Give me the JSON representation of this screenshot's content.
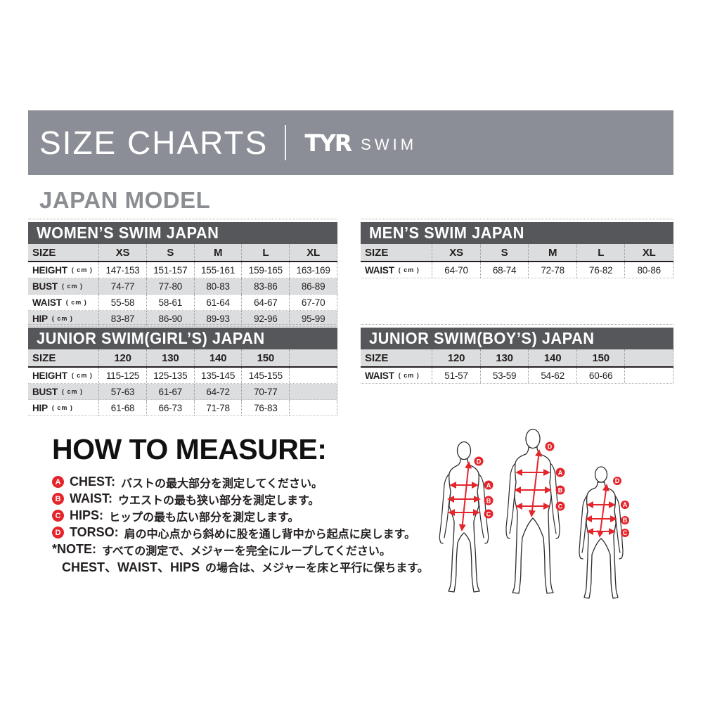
{
  "header": {
    "title": "SIZE CHARTS",
    "brand": "TYR",
    "brand_suffix": "SWIM"
  },
  "section_title": "JAPAN MODEL",
  "tables": [
    {
      "id": "womens",
      "title": "WOMEN’S SWIM JAPAN",
      "size_label": "SIZE",
      "columns": [
        "XS",
        "S",
        "M",
        "L",
        "XL"
      ],
      "rows": [
        {
          "label": "HEIGHT",
          "unit": "( cm )",
          "values": [
            "147-153",
            "151-157",
            "155-161",
            "159-165",
            "163-169"
          ]
        },
        {
          "label": "BUST",
          "unit": "( cm )",
          "values": [
            "74-77",
            "77-80",
            "80-83",
            "83-86",
            "86-89"
          ]
        },
        {
          "label": "WAIST",
          "unit": "( cm )",
          "values": [
            "55-58",
            "58-61",
            "61-64",
            "64-67",
            "67-70"
          ]
        },
        {
          "label": "HIP",
          "unit": "( cm )",
          "values": [
            "83-87",
            "86-90",
            "89-93",
            "92-96",
            "95-99"
          ]
        }
      ]
    },
    {
      "id": "mens",
      "title": "MEN’S SWIM JAPAN",
      "size_label": "SIZE",
      "columns": [
        "XS",
        "S",
        "M",
        "L",
        "XL"
      ],
      "rows": [
        {
          "label": "WAIST",
          "unit": "( cm )",
          "values": [
            "64-70",
            "68-74",
            "72-78",
            "76-82",
            "80-86"
          ]
        }
      ]
    },
    {
      "id": "junior_girls",
      "title": "JUNIOR SWIM(GIRL’S) JAPAN",
      "size_label": "SIZE",
      "columns": [
        "120",
        "130",
        "140",
        "150",
        ""
      ],
      "rows": [
        {
          "label": "HEIGHT",
          "unit": "( cm )",
          "values": [
            "115-125",
            "125-135",
            "135-145",
            "145-155",
            ""
          ]
        },
        {
          "label": "BUST",
          "unit": "( cm )",
          "values": [
            "57-63",
            "61-67",
            "64-72",
            "70-77",
            ""
          ]
        },
        {
          "label": "HIP",
          "unit": "( cm )",
          "values": [
            "61-68",
            "66-73",
            "71-78",
            "76-83",
            ""
          ]
        }
      ]
    },
    {
      "id": "junior_boys",
      "title": "JUNIOR SWIM(BOY’S) JAPAN",
      "size_label": "SIZE",
      "columns": [
        "120",
        "130",
        "140",
        "150",
        ""
      ],
      "rows": [
        {
          "label": "WAIST",
          "unit": "( cm )",
          "values": [
            "51-57",
            "53-59",
            "54-62",
            "60-66",
            ""
          ]
        }
      ]
    }
  ],
  "how_to_measure": {
    "title": "HOW TO MEASURE:",
    "items": [
      {
        "marker": "A",
        "label": "CHEST:",
        "text": "バストの最大部分を測定してください。"
      },
      {
        "marker": "B",
        "label": "WAIST:",
        "text": "ウエストの最も狭い部分を測定します。"
      },
      {
        "marker": "C",
        "label": "HIPS:",
        "text": "ヒップの最も広い部分を測定します。"
      },
      {
        "marker": "D",
        "label": "TORSO:",
        "text": "肩の中心点から斜めに股を通し背中から起点に戻します。"
      }
    ],
    "note": {
      "label": "*NOTE:",
      "text": "すべての測定で、メジャーを完全にループしてください。"
    },
    "note2": {
      "bold": "CHEST、WAIST、HIPS",
      "text": "の場合は、メジャーを床と平行に保ちます。"
    }
  },
  "figures": {
    "markers": [
      "D",
      "A",
      "B",
      "C"
    ]
  },
  "colors": {
    "top_bar": "#8b8e96",
    "table_header": "#56575a",
    "row_stripe": "#dcddde",
    "accent_red": "#e4252b",
    "title_gray": "#8a8d91"
  }
}
